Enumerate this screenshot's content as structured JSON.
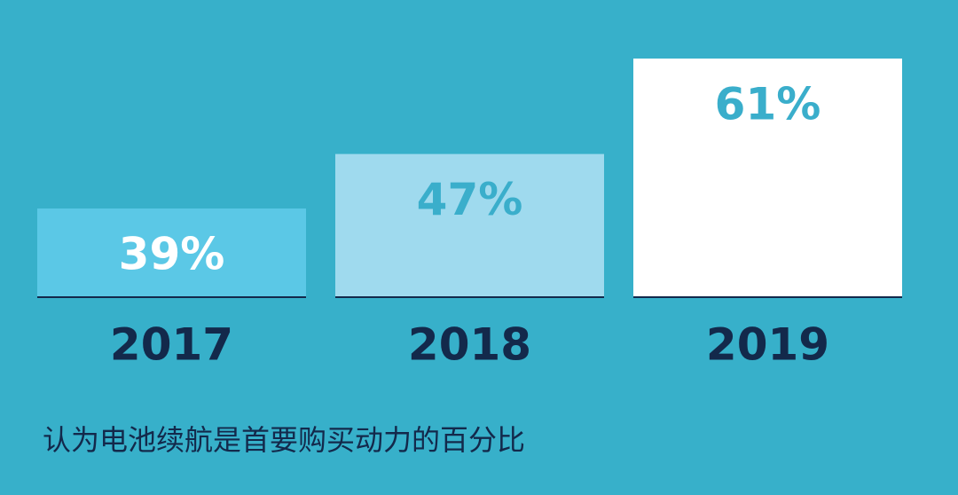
{
  "chart_data": {
    "type": "bar",
    "caption": "认为电池续航是首要购买动力的百分比",
    "categories": [
      "2017",
      "2018",
      "2019"
    ],
    "values": [
      39,
      47,
      61
    ],
    "value_labels": [
      "39%",
      "47%",
      "61%"
    ],
    "colors": [
      "#5bc8e6",
      "#9fdaee",
      "#ffffff"
    ],
    "label_colors": [
      "#ffffff",
      "#3aaecb",
      "#3aaecb"
    ],
    "ylim": [
      26,
      61
    ]
  }
}
